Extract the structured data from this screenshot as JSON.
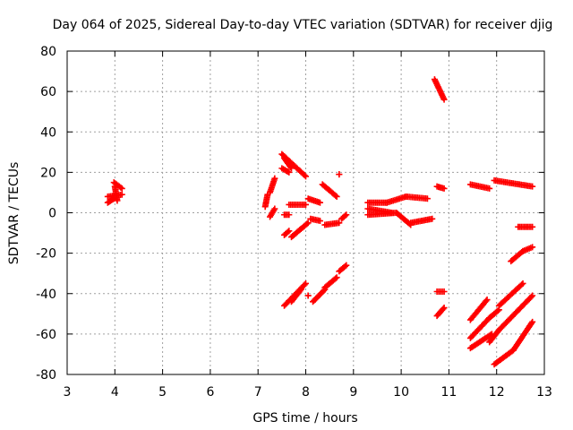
{
  "chart_data": {
    "type": "scatter",
    "title": "Day 064 of 2025, Sidereal Day-to-day VTEC variation (SDTVAR) for receiver djig",
    "xlabel": "GPS time / hours",
    "ylabel": "SDTVAR / TECUs",
    "xlim": [
      3,
      13
    ],
    "ylim": [
      -80,
      80
    ],
    "xticks": [
      "3",
      "4",
      "5",
      "6",
      "7",
      "8",
      "9",
      "10",
      "11",
      "12",
      "13"
    ],
    "yticks": [
      "-80",
      "-60",
      "-40",
      "-20",
      "0",
      "20",
      "40",
      "60",
      "80"
    ],
    "grid": true,
    "marker": "plus",
    "color": "#ff0000",
    "segments": [
      {
        "x0": 3.85,
        "y0": 5,
        "x1": 3.98,
        "y1": 7
      },
      {
        "x0": 3.85,
        "y0": 8,
        "x1": 4.15,
        "y1": 9
      },
      {
        "x0": 3.98,
        "y0": 15,
        "x1": 4.15,
        "y1": 12
      },
      {
        "x0": 4.0,
        "y0": 13,
        "x1": 4.05,
        "y1": 6
      },
      {
        "x0": 7.15,
        "y0": 3,
        "x1": 7.2,
        "y1": 9
      },
      {
        "x0": 7.25,
        "y0": 10,
        "x1": 7.35,
        "y1": 17
      },
      {
        "x0": 7.25,
        "y0": -2,
        "x1": 7.35,
        "y1": 2
      },
      {
        "x0": 7.5,
        "y0": 29,
        "x1": 8.0,
        "y1": 18
      },
      {
        "x0": 7.55,
        "y0": 27,
        "x1": 7.7,
        "y1": 22
      },
      {
        "x0": 7.5,
        "y0": 22,
        "x1": 7.65,
        "y1": 20
      },
      {
        "x0": 7.55,
        "y0": -1,
        "x1": 7.65,
        "y1": -1
      },
      {
        "x0": 7.65,
        "y0": 4,
        "x1": 8.0,
        "y1": 4
      },
      {
        "x0": 7.55,
        "y0": -11,
        "x1": 7.65,
        "y1": -9
      },
      {
        "x0": 7.7,
        "y0": -12,
        "x1": 8.05,
        "y1": -5
      },
      {
        "x0": 7.55,
        "y0": -46,
        "x1": 8.0,
        "y1": -35
      },
      {
        "x0": 7.7,
        "y0": -44,
        "x1": 7.9,
        "y1": -38
      },
      {
        "x0": 8.05,
        "y0": 7,
        "x1": 8.3,
        "y1": 5
      },
      {
        "x0": 8.1,
        "y0": -3,
        "x1": 8.3,
        "y1": -4
      },
      {
        "x0": 8.4,
        "y0": -6,
        "x1": 8.7,
        "y1": -5
      },
      {
        "x0": 8.75,
        "y0": -3,
        "x1": 8.85,
        "y1": -1
      },
      {
        "x0": 8.35,
        "y0": 14,
        "x1": 8.65,
        "y1": 8
      },
      {
        "x0": 8.7,
        "y0": 19,
        "x1": 8.7,
        "y1": 19
      },
      {
        "x0": 8.05,
        "y0": -41,
        "x1": 8.05,
        "y1": -41
      },
      {
        "x0": 8.15,
        "y0": -44,
        "x1": 8.4,
        "y1": -38
      },
      {
        "x0": 8.4,
        "y0": -37,
        "x1": 8.65,
        "y1": -32
      },
      {
        "x0": 8.7,
        "y0": -29,
        "x1": 8.85,
        "y1": -26
      },
      {
        "x0": 9.3,
        "y0": 5,
        "x1": 9.7,
        "y1": 5
      },
      {
        "x0": 9.7,
        "y0": 5,
        "x1": 10.1,
        "y1": 8
      },
      {
        "x0": 10.1,
        "y0": 8,
        "x1": 10.55,
        "y1": 7
      },
      {
        "x0": 9.3,
        "y0": 2,
        "x1": 9.8,
        "y1": 0
      },
      {
        "x0": 9.3,
        "y0": -1,
        "x1": 9.9,
        "y1": 0
      },
      {
        "x0": 9.9,
        "y0": 0,
        "x1": 10.2,
        "y1": -6
      },
      {
        "x0": 10.2,
        "y0": -5,
        "x1": 10.65,
        "y1": -3
      },
      {
        "x0": 10.7,
        "y0": 66,
        "x1": 10.9,
        "y1": 56
      },
      {
        "x0": 10.75,
        "y0": 13,
        "x1": 10.9,
        "y1": 12
      },
      {
        "x0": 10.75,
        "y0": -39,
        "x1": 10.9,
        "y1": -39
      },
      {
        "x0": 10.75,
        "y0": -51,
        "x1": 10.9,
        "y1": -47
      },
      {
        "x0": 11.45,
        "y0": 14,
        "x1": 11.85,
        "y1": 12
      },
      {
        "x0": 11.95,
        "y0": 16,
        "x1": 12.75,
        "y1": 13
      },
      {
        "x0": 12.45,
        "y0": -7,
        "x1": 12.75,
        "y1": -7
      },
      {
        "x0": 12.3,
        "y0": -24,
        "x1": 12.55,
        "y1": -19
      },
      {
        "x0": 12.55,
        "y0": -19,
        "x1": 12.75,
        "y1": -17
      },
      {
        "x0": 11.45,
        "y0": -53,
        "x1": 11.8,
        "y1": -43
      },
      {
        "x0": 11.45,
        "y0": -62,
        "x1": 11.85,
        "y1": -52
      },
      {
        "x0": 11.85,
        "y0": -52,
        "x1": 12.05,
        "y1": -48
      },
      {
        "x0": 12.05,
        "y0": -46,
        "x1": 12.55,
        "y1": -35
      },
      {
        "x0": 11.85,
        "y0": -64,
        "x1": 12.05,
        "y1": -58
      },
      {
        "x0": 12.05,
        "y0": -58,
        "x1": 12.75,
        "y1": -41
      },
      {
        "x0": 11.45,
        "y0": -67,
        "x1": 11.9,
        "y1": -60
      },
      {
        "x0": 11.95,
        "y0": -75,
        "x1": 12.35,
        "y1": -68
      },
      {
        "x0": 12.35,
        "y0": -68,
        "x1": 12.75,
        "y1": -54
      }
    ]
  }
}
